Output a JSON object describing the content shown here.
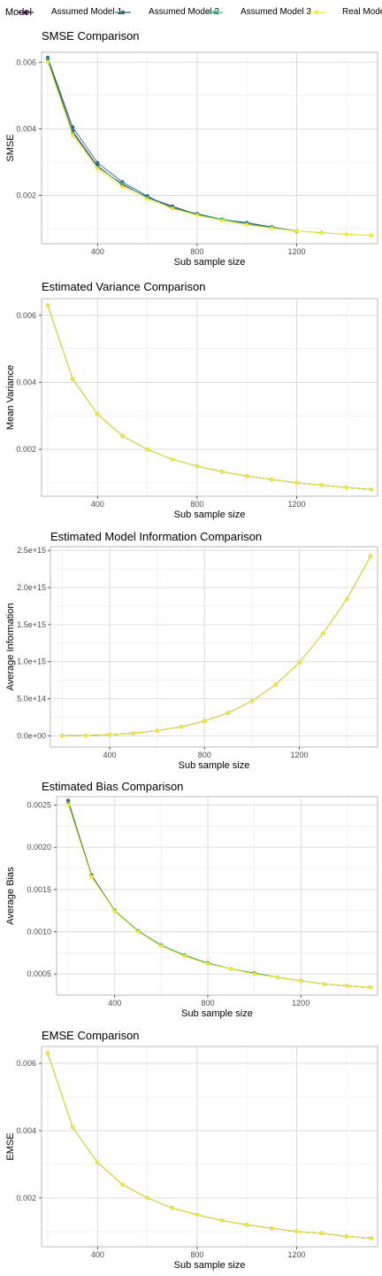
{
  "legend": {
    "title": "Model",
    "items": [
      {
        "label": "Assumed Model 1",
        "color": "#440154"
      },
      {
        "label": "Assumed Model 2",
        "color": "#31688e"
      },
      {
        "label": "Assumed Model 3",
        "color": "#35b779"
      },
      {
        "label": "Real Model",
        "color": "#fde725"
      }
    ]
  },
  "chart_data": [
    {
      "type": "line",
      "title": "SMSE Comparison",
      "xlabel": "Sub sample size",
      "ylabel": "SMSE",
      "xlim": [
        175,
        1525
      ],
      "ylim": [
        0.00055,
        0.0063
      ],
      "xticks": [
        400,
        800,
        1200
      ],
      "yticks": [
        0.002,
        0.004,
        0.006
      ],
      "ytick_labels": [
        "0.002",
        "0.004",
        "0.006"
      ],
      "grid": true,
      "x": [
        200,
        300,
        400,
        500,
        600,
        700,
        800,
        900,
        1000,
        1100,
        1200,
        1300,
        1400,
        1500
      ],
      "series": [
        {
          "name": "Assumed Model 1",
          "values": [
            0.00612,
            0.00392,
            0.00288,
            0.00232,
            0.00195,
            0.00167,
            0.00143,
            0.00128,
            0.00117,
            0.00104,
            0.00092,
            null,
            null,
            null
          ]
        },
        {
          "name": "Assumed Model 2",
          "values": [
            0.00614,
            0.00405,
            0.00298,
            0.0024,
            0.00198,
            0.00162,
            0.00145,
            0.00128,
            0.00118,
            0.00105,
            0.00093,
            null,
            null,
            null
          ]
        },
        {
          "name": "Assumed Model 3",
          "values": [
            0.00607,
            0.00388,
            0.00285,
            0.00235,
            0.00193,
            0.00164,
            0.00142,
            0.00128,
            0.00114,
            0.00103,
            0.00093,
            0.00088,
            0.00083,
            0.0008
          ]
        },
        {
          "name": "Real Model",
          "values": [
            0.006,
            0.0038,
            0.0028,
            0.00225,
            0.00188,
            0.0016,
            0.0014,
            0.00124,
            0.00112,
            0.00101,
            0.00093,
            0.00087,
            0.00083,
            0.0008
          ]
        }
      ]
    },
    {
      "type": "line",
      "title": "Estimated Variance Comparison",
      "xlabel": "Sub sample size",
      "ylabel": "Mean Variance",
      "xlim": [
        175,
        1525
      ],
      "ylim": [
        0.0006,
        0.0065
      ],
      "xticks": [
        400,
        800,
        1200
      ],
      "yticks": [
        0.002,
        0.004,
        0.006
      ],
      "ytick_labels": [
        "0.002",
        "0.004",
        "0.006"
      ],
      "grid": true,
      "x": [
        200,
        300,
        400,
        500,
        600,
        700,
        800,
        900,
        1000,
        1100,
        1200,
        1300,
        1400,
        1500
      ],
      "series": [
        {
          "name": "Assumed Model 1",
          "values": [
            0.0063,
            0.0041,
            0.00305,
            0.0024,
            0.002,
            0.0017,
            0.0015,
            0.00133,
            0.0012,
            0.0011,
            0.001,
            0.00093,
            0.00086,
            0.0008
          ]
        },
        {
          "name": "Assumed Model 2",
          "values": [
            0.0063,
            0.0041,
            0.00305,
            0.0024,
            0.002,
            0.0017,
            0.0015,
            0.00133,
            0.0012,
            0.0011,
            0.001,
            0.00093,
            0.00086,
            0.0008
          ]
        },
        {
          "name": "Assumed Model 3",
          "values": [
            0.0063,
            0.0041,
            0.00305,
            0.0024,
            0.002,
            0.0017,
            0.0015,
            0.00133,
            0.0012,
            0.0011,
            0.001,
            0.00093,
            0.00086,
            0.0008
          ]
        },
        {
          "name": "Real Model",
          "values": [
            0.0063,
            0.0041,
            0.00305,
            0.0024,
            0.002,
            0.0017,
            0.0015,
            0.00133,
            0.0012,
            0.0011,
            0.001,
            0.00093,
            0.00086,
            0.0008
          ]
        }
      ]
    },
    {
      "type": "line",
      "title": "Estimated Model Information Comparison",
      "xlabel": "Sub sample size",
      "ylabel": "Average Information",
      "xlim": [
        150,
        1530
      ],
      "ylim": [
        -150000000000000.0,
        2550000000000000.0
      ],
      "xticks": [
        400,
        800,
        1200
      ],
      "yticks": [
        0,
        500000000000000.0,
        1000000000000000.0,
        1500000000000000.0,
        2000000000000000.0,
        2500000000000000.0
      ],
      "ytick_labels": [
        "0.0e+00",
        "5.0e+14",
        "1.0e+15",
        "1.5e+15",
        "2.0e+15",
        "2.5e+15"
      ],
      "grid": true,
      "x": [
        200,
        300,
        400,
        500,
        600,
        700,
        800,
        900,
        1000,
        1100,
        1200,
        1300,
        1400,
        1500
      ],
      "series": [
        {
          "name": "Assumed Model 1",
          "values": [
            1000000000000.0,
            4000000000000.0,
            15000000000000.0,
            35000000000000.0,
            70000000000000.0,
            120000000000000.0,
            200000000000000.0,
            310000000000000.0,
            470000000000000.0,
            690000000000000.0,
            990000000000000.0,
            1380000000000000.0,
            1840000000000000.0,
            2420000000000000.0
          ]
        },
        {
          "name": "Assumed Model 2",
          "values": [
            1000000000000.0,
            4000000000000.0,
            15000000000000.0,
            35000000000000.0,
            70000000000000.0,
            120000000000000.0,
            200000000000000.0,
            310000000000000.0,
            470000000000000.0,
            690000000000000.0,
            990000000000000.0,
            1380000000000000.0,
            1840000000000000.0,
            2420000000000000.0
          ]
        },
        {
          "name": "Assumed Model 3",
          "values": [
            1000000000000.0,
            4000000000000.0,
            15000000000000.0,
            35000000000000.0,
            70000000000000.0,
            120000000000000.0,
            200000000000000.0,
            310000000000000.0,
            470000000000000.0,
            690000000000000.0,
            990000000000000.0,
            1380000000000000.0,
            1840000000000000.0,
            2420000000000000.0
          ]
        },
        {
          "name": "Real Model",
          "values": [
            1000000000000.0,
            4000000000000.0,
            15000000000000.0,
            35000000000000.0,
            70000000000000.0,
            120000000000000.0,
            200000000000000.0,
            310000000000000.0,
            470000000000000.0,
            690000000000000.0,
            990000000000000.0,
            1380000000000000.0,
            1840000000000000.0,
            2420000000000000.0
          ]
        }
      ]
    },
    {
      "type": "line",
      "title": "Estimated Bias Comparison",
      "xlabel": "Sub sample size",
      "ylabel": "Average Bias",
      "xlim": [
        150,
        1530
      ],
      "ylim": [
        0.00025,
        0.0026
      ],
      "xticks": [
        400,
        800,
        1200
      ],
      "yticks": [
        0.0005,
        0.001,
        0.0015,
        0.002,
        0.0025
      ],
      "ytick_labels": [
        "0.0005",
        "0.0010",
        "0.0015",
        "0.0020",
        "0.0025"
      ],
      "grid": true,
      "x": [
        200,
        300,
        400,
        500,
        600,
        700,
        800,
        900,
        1000,
        1100,
        1200,
        1300,
        1400,
        1500
      ],
      "series": [
        {
          "name": "Assumed Model 1",
          "values": [
            0.00255,
            0.00167,
            0.00125,
            0.00101,
            0.00084,
            0.00072,
            0.00063,
            0.00056,
            0.00051,
            0.00046,
            0.00042,
            0.00038,
            0.00036,
            0.00034
          ]
        },
        {
          "name": "Assumed Model 2",
          "values": [
            0.00254,
            0.00166,
            0.00125,
            0.00101,
            0.00084,
            0.00072,
            0.00063,
            0.00056,
            0.00051,
            0.00046,
            0.00042,
            0.00038,
            0.00036,
            0.00034
          ]
        },
        {
          "name": "Assumed Model 3",
          "values": [
            0.00253,
            0.00166,
            0.00125,
            0.00101,
            0.00084,
            0.00072,
            0.00063,
            0.00056,
            0.00051,
            0.00046,
            0.00042,
            0.00038,
            0.00036,
            0.00034
          ]
        },
        {
          "name": "Real Model",
          "values": [
            0.0025,
            0.00165,
            0.00124,
            0.001,
            0.00083,
            0.00071,
            0.00062,
            0.00056,
            0.0005,
            0.00046,
            0.00042,
            0.00038,
            0.00036,
            0.00034
          ]
        }
      ]
    },
    {
      "type": "line",
      "title": "EMSE Comparison",
      "xlabel": "Sub sample size",
      "ylabel": "EMSE",
      "xlim": [
        175,
        1525
      ],
      "ylim": [
        0.00055,
        0.0065
      ],
      "xticks": [
        400,
        800,
        1200
      ],
      "yticks": [
        0.002,
        0.004,
        0.006
      ],
      "ytick_labels": [
        "0.002",
        "0.004",
        "0.006"
      ],
      "grid": true,
      "x": [
        200,
        300,
        400,
        500,
        600,
        700,
        800,
        900,
        1000,
        1100,
        1200,
        1300,
        1400,
        1500
      ],
      "series": [
        {
          "name": "Assumed Model 1",
          "values": [
            0.0063,
            0.0041,
            0.00305,
            0.0024,
            0.002,
            0.0017,
            0.0015,
            0.00133,
            0.0012,
            0.0011,
            0.001,
            0.00095,
            0.00086,
            0.0008
          ]
        },
        {
          "name": "Assumed Model 2",
          "values": [
            0.0063,
            0.0041,
            0.00305,
            0.0024,
            0.002,
            0.0017,
            0.0015,
            0.00133,
            0.0012,
            0.0011,
            0.001,
            0.00095,
            0.00086,
            0.0008
          ]
        },
        {
          "name": "Assumed Model 3",
          "values": [
            0.0063,
            0.0041,
            0.00305,
            0.0024,
            0.002,
            0.0017,
            0.0015,
            0.00133,
            0.0012,
            0.0011,
            0.001,
            0.00095,
            0.00086,
            0.0008
          ]
        },
        {
          "name": "Real Model",
          "values": [
            0.0063,
            0.0041,
            0.00305,
            0.0024,
            0.002,
            0.0017,
            0.0015,
            0.00133,
            0.0012,
            0.0011,
            0.001,
            0.00095,
            0.00086,
            0.0008
          ]
        }
      ]
    }
  ]
}
